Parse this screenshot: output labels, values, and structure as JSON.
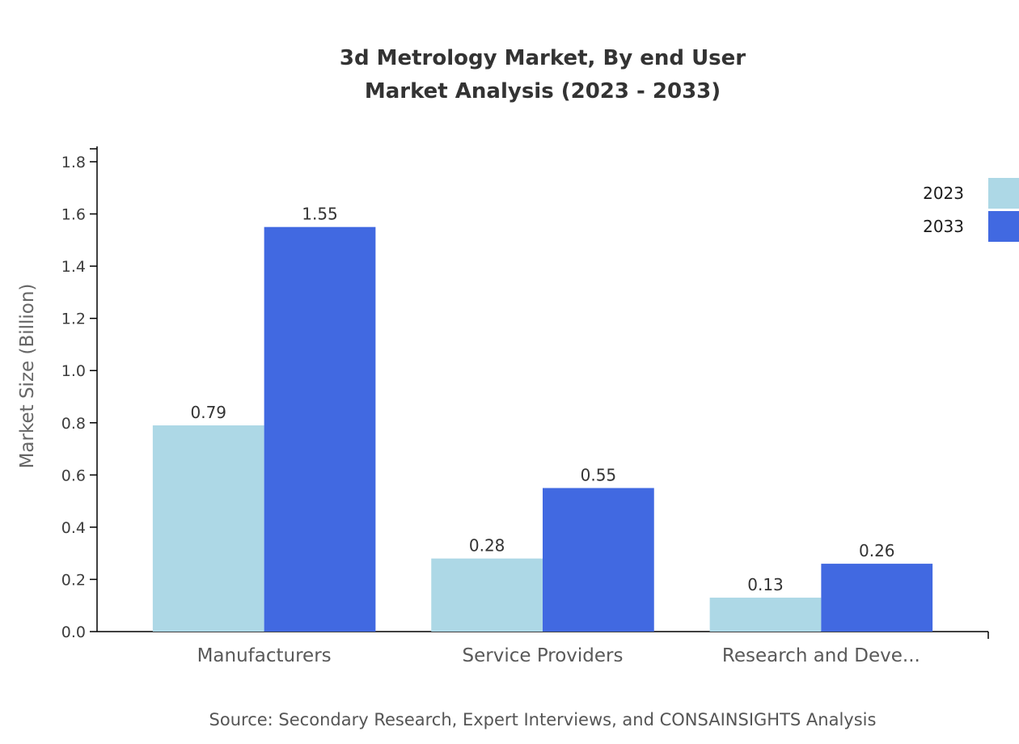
{
  "chart_data": {
    "type": "bar",
    "title": "3d Metrology Market, By end User Market Analysis (2023 - 2033)",
    "title_lines": [
      "3d Metrology Market, By end User",
      "Market Analysis (2023 - 2033)"
    ],
    "categories": [
      "Manufacturers",
      "Service Providers",
      "Research and Deve..."
    ],
    "series": [
      {
        "name": "2023",
        "color": "#ADD8E6",
        "values": [
          0.79,
          0.28,
          0.13
        ]
      },
      {
        "name": "2033",
        "color": "#4169E1",
        "values": [
          1.55,
          0.55,
          0.26
        ]
      }
    ],
    "xlabel": "",
    "ylabel": "Market Size (Billion)",
    "ylim": [
      0,
      1.8
    ],
    "ytick_step": 0.2,
    "grid": false,
    "legend_position": "top-right",
    "value_labels": true
  },
  "source": {
    "text": "Source: Secondary Research, Expert Interviews, and CONSAINSIGHTS Analysis"
  }
}
